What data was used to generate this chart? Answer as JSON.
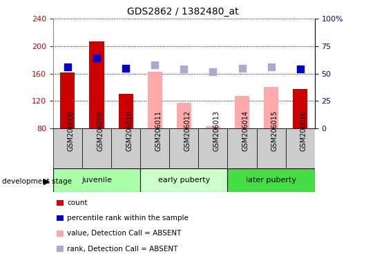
{
  "title": "GDS2862 / 1382480_at",
  "samples": [
    "GSM206008",
    "GSM206009",
    "GSM206010",
    "GSM206011",
    "GSM206012",
    "GSM206013",
    "GSM206014",
    "GSM206015",
    "GSM206016"
  ],
  "bar_values": [
    162,
    207,
    130,
    163,
    117,
    83,
    127,
    140,
    137
  ],
  "bar_colors": [
    "#cc0000",
    "#cc0000",
    "#cc0000",
    "#ffaaaa",
    "#ffaaaa",
    "#ffaaaa",
    "#ffaaaa",
    "#ffaaaa",
    "#cc0000"
  ],
  "dot_values": [
    170,
    183,
    168,
    173,
    167,
    163,
    168,
    170,
    167
  ],
  "dot_colors": [
    "#0000cc",
    "#0000cc",
    "#0000cc",
    "#aaaacc",
    "#aaaacc",
    "#aaaacc",
    "#aaaacc",
    "#aaaacc",
    "#0000cc"
  ],
  "ylim_left": [
    80,
    240
  ],
  "ylim_right": [
    0,
    100
  ],
  "yticks_left": [
    80,
    120,
    160,
    200,
    240
  ],
  "yticks_right": [
    0,
    25,
    50,
    75,
    100
  ],
  "yticklabels_right": [
    "0",
    "25",
    "50",
    "75",
    "100%"
  ],
  "stage_groups": [
    {
      "label": "juvenile",
      "start": 0,
      "end": 2,
      "color": "#aaffaa"
    },
    {
      "label": "early puberty",
      "start": 3,
      "end": 5,
      "color": "#ccffcc"
    },
    {
      "label": "later puberty",
      "start": 6,
      "end": 8,
      "color": "#44dd44"
    }
  ],
  "legend_items": [
    {
      "label": "count",
      "color": "#cc0000"
    },
    {
      "label": "percentile rank within the sample",
      "color": "#0000cc"
    },
    {
      "label": "value, Detection Call = ABSENT",
      "color": "#ffaaaa"
    },
    {
      "label": "rank, Detection Call = ABSENT",
      "color": "#aaaacc"
    }
  ],
  "left_label_color": "#cc0000",
  "right_label_color": "#0000bb",
  "stage_label": "development stage",
  "plot_bg_color": "#ffffff",
  "grid_color": "#000000",
  "bar_width": 0.5,
  "dot_size": 55,
  "sample_box_color": "#cccccc",
  "sample_box_edge": "#999999"
}
